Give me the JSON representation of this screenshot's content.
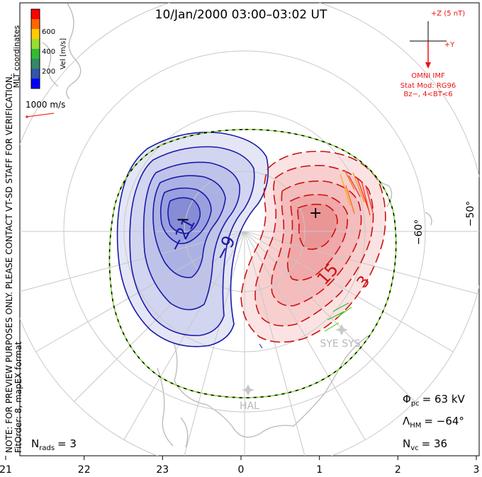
{
  "title": "10/Jan/2000 03:00–03:02 UT",
  "coords_label": "MLT coordinates",
  "colorbar": {
    "label": "Vel [m/s]",
    "ticks": [
      "600",
      "400",
      "200"
    ],
    "colors": [
      "#ff0000",
      "#ff6600",
      "#ffcc00",
      "#99dd33",
      "#33bb33",
      "#338866",
      "#3355aa",
      "#0000ff"
    ]
  },
  "vector_scale": {
    "label": "1000 m/s",
    "color": "#ee3333"
  },
  "imf": {
    "z_label": "+Z (5 nT)",
    "y_label": "+Y",
    "source": "OMNI IMF",
    "model_line1": "Stat Mod: RG96",
    "model_line2": "Bz−, 4<BT<6",
    "color": "#ee1111"
  },
  "note": {
    "line1": "NOTE: FOR PREVIEW PURPOSES ONLY. PLEASE CONTACT VT-SD STAFF FOR VERIFICATION.",
    "line2": "FitOrder: 8, mapEX format"
  },
  "lat_labels": [
    "−60°",
    "−50°"
  ],
  "stations": [
    {
      "name": "HAL"
    },
    {
      "name": "SYE SYS"
    }
  ],
  "contour_labels": {
    "neg": [
      "−21",
      "−9"
    ],
    "pos": [
      "15",
      "3"
    ],
    "min_marker": "−",
    "max_marker": "+"
  },
  "stats": {
    "phi_pc": {
      "symbol": "Φ",
      "sub": "pc",
      "value": "= 63 kV"
    },
    "lambda_hm": {
      "symbol": "Λ",
      "sub": "HM",
      "value": "= −64°"
    },
    "n_vc": {
      "symbol": "N",
      "sub": "vc",
      "value": "= 36"
    },
    "n_rads": {
      "symbol": "N",
      "sub": "rads",
      "value": "= 3"
    }
  },
  "chart_data": {
    "type": "contour",
    "title": "10/Jan/2000 03:00–03:02 UT",
    "coordinates": "MLT coordinates",
    "x_ticks": [
      "21",
      "22",
      "23",
      "0",
      "1",
      "2",
      "3"
    ],
    "x_tick_mlt": [
      21,
      22,
      23,
      0,
      1,
      2,
      3
    ],
    "lat_circles_deg": [
      -80,
      -70,
      -60,
      -50
    ],
    "mlt_meridians_hours": [
      18,
      19,
      20,
      21,
      22,
      23,
      0,
      1,
      2,
      3,
      4,
      5,
      6
    ],
    "potential_kV": {
      "cross_polar_cap": 63
    },
    "heppner_maynard_boundary_deg": -64,
    "n_vectors": 36,
    "n_radars": 3,
    "negative_cell": {
      "center_mlt": 23.2,
      "center_lat": -78,
      "levels_kV": [
        -33,
        -27,
        -21,
        -15,
        -9,
        -3
      ]
    },
    "positive_cell": {
      "center_mlt": 1.3,
      "center_lat": -79,
      "levels_kV": [
        3,
        9,
        15,
        21,
        27
      ]
    },
    "colorbar_range_ms": [
      0,
      700
    ]
  }
}
